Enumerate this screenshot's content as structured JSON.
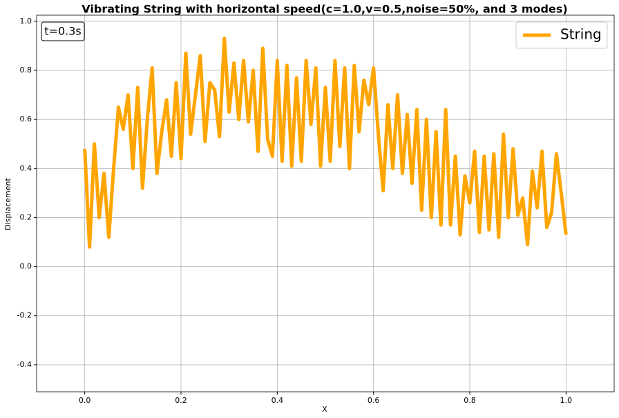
{
  "chart_data": {
    "type": "line",
    "title": "Vibrating String with horizontal speed(c=1.0,v=0.5,noise=50%, and 3 modes)",
    "xlabel": "X",
    "ylabel": "Displacement",
    "annotation": "t=0.3s",
    "x": [
      0,
      0.01,
      0.02,
      0.03,
      0.04,
      0.05,
      0.06,
      0.07,
      0.08,
      0.09,
      0.1,
      0.11,
      0.12,
      0.13,
      0.14,
      0.15,
      0.16,
      0.17,
      0.18,
      0.19,
      0.2,
      0.21,
      0.22,
      0.23,
      0.24,
      0.25,
      0.26,
      0.27,
      0.28,
      0.29,
      0.3,
      0.31,
      0.32,
      0.33,
      0.34,
      0.35,
      0.36,
      0.37,
      0.38,
      0.39,
      0.4,
      0.41,
      0.42,
      0.43,
      0.44,
      0.45,
      0.46,
      0.47,
      0.48,
      0.49,
      0.5,
      0.51,
      0.52,
      0.53,
      0.54,
      0.55,
      0.56,
      0.57,
      0.58,
      0.59,
      0.6,
      0.61,
      0.62,
      0.63,
      0.64,
      0.65,
      0.66,
      0.67,
      0.68,
      0.69,
      0.7,
      0.71,
      0.72,
      0.73,
      0.74,
      0.75,
      0.76,
      0.77,
      0.78,
      0.79,
      0.8,
      0.81,
      0.82,
      0.83,
      0.84,
      0.85,
      0.86,
      0.87,
      0.88,
      0.89,
      0.9,
      0.91,
      0.92,
      0.93,
      0.94,
      0.95,
      0.96,
      0.97,
      0.98,
      0.99,
      1
    ],
    "series": [
      {
        "name": "String",
        "color": "#ffa500",
        "values": [
          0.48,
          0.08,
          0.5,
          0.2,
          0.38,
          0.12,
          0.4,
          0.65,
          0.56,
          0.7,
          0.4,
          0.73,
          0.32,
          0.6,
          0.81,
          0.38,
          0.55,
          0.68,
          0.45,
          0.75,
          0.44,
          0.87,
          0.54,
          0.7,
          0.86,
          0.51,
          0.75,
          0.72,
          0.53,
          0.93,
          0.63,
          0.83,
          0.6,
          0.84,
          0.59,
          0.8,
          0.47,
          0.89,
          0.52,
          0.45,
          0.84,
          0.43,
          0.82,
          0.41,
          0.77,
          0.43,
          0.84,
          0.58,
          0.81,
          0.41,
          0.73,
          0.43,
          0.84,
          0.49,
          0.81,
          0.4,
          0.82,
          0.55,
          0.76,
          0.66,
          0.81,
          0.54,
          0.31,
          0.66,
          0.4,
          0.7,
          0.38,
          0.62,
          0.34,
          0.64,
          0.23,
          0.6,
          0.2,
          0.55,
          0.17,
          0.64,
          0.17,
          0.45,
          0.13,
          0.37,
          0.26,
          0.47,
          0.14,
          0.45,
          0.15,
          0.46,
          0.12,
          0.54,
          0.2,
          0.48,
          0.21,
          0.28,
          0.09,
          0.39,
          0.24,
          0.47,
          0.16,
          0.22,
          0.46,
          0.3,
          0.13
        ]
      }
    ],
    "xlim": [
      -0.1,
      1.1
    ],
    "xticks": [
      {
        "value": 0,
        "label": "0.0"
      },
      0.2,
      0.4,
      0.6,
      0.8,
      {
        "value": 1,
        "label": "1.0"
      }
    ],
    "ylim": [
      -0.51,
      1.025
    ],
    "yticks": [
      -0.4,
      -0.2,
      {
        "value": 0,
        "label": "0.0"
      },
      0.2,
      0.4,
      0.6,
      0.8,
      {
        "value": 1,
        "label": "1.0"
      }
    ],
    "grid": true,
    "legend": "upper right"
  }
}
